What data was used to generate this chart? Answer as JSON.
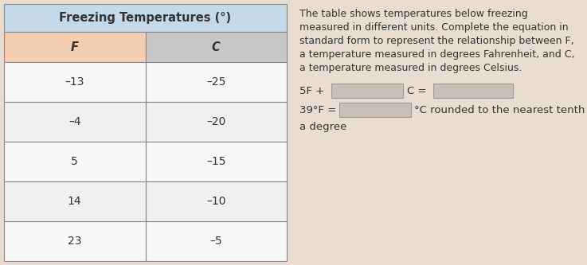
{
  "title": "Freezing Temperatures (°)",
  "col_headers": [
    "F",
    "C"
  ],
  "rows": [
    [
      "–13",
      "–25"
    ],
    [
      "–4",
      "–20"
    ],
    [
      "5",
      "–15"
    ],
    [
      "14",
      "–10"
    ],
    [
      "23",
      "–5"
    ]
  ],
  "right_text_lines": [
    "The table shows temperatures below freezing",
    "measured in different units. Complete the equation in",
    "standard form to represent the relationship between F,",
    "a temperature measured in degrees Fahrenheit, and C,",
    "a temperature measured in degrees Celsius."
  ],
  "eq_line1_prefix": "5F + ",
  "eq_line1_mid": "C = ",
  "eq_line2_prefix": "39°F = ",
  "eq_line2_suffix": "°C rounded to the nearest tenth of",
  "eq_line3": "a degree",
  "title_bg": "#c5d9e8",
  "header_bg_F": "#f5cdb0",
  "header_bg_C": "#c8c8c8",
  "row_bg_light": "#f0f0f0",
  "row_bg_white": "#f8f8f8",
  "table_border_color": "#888888",
  "right_bg": "#e8ddd0",
  "input_box_bg": "#c8c0b8",
  "input_box_border": "#999999",
  "text_color": "#333333",
  "font_size_title": 10.5,
  "font_size_header": 10.5,
  "font_size_data": 10,
  "font_size_right": 9.0,
  "font_size_eq": 9.5
}
